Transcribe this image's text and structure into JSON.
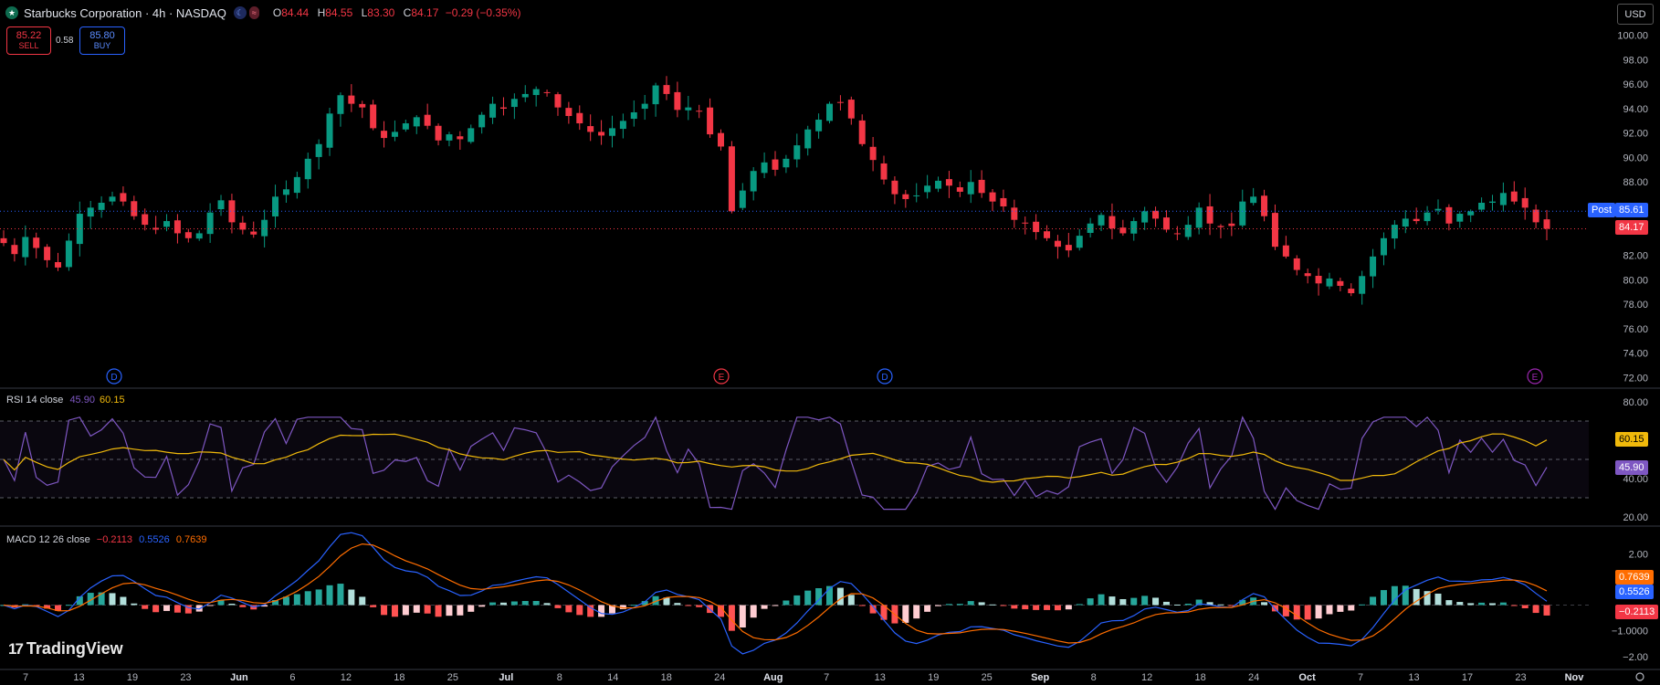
{
  "header": {
    "symbol_title": "Starbucks Corporation · 4h · NASDAQ",
    "ohlc": {
      "o_label": "O",
      "o": "84.44",
      "h_label": "H",
      "h": "84.55",
      "l_label": "L",
      "l": "83.30",
      "c_label": "C",
      "c": "84.17",
      "change": "−0.29 (−0.35%)"
    }
  },
  "trade": {
    "sell_price": "85.22",
    "sell_label": "SELL",
    "spread": "0.58",
    "buy_price": "85.80",
    "buy_label": "BUY"
  },
  "currency": "USD",
  "price_labels": {
    "post_tag": "Post",
    "post_value": "85.61",
    "last_value": "84.17",
    "rsi_ma": "60.15",
    "rsi": "45.90",
    "macd_signal": "0.7639",
    "macd_line": "0.5526",
    "macd_hist": "−0.2113"
  },
  "rsi_legend": {
    "name": "RSI 14 close",
    "rsi": "45.90",
    "ma": "60.15"
  },
  "macd_legend": {
    "name": "MACD 12 26 close",
    "hist": "−0.2113",
    "macd": "0.5526",
    "signal": "0.7639"
  },
  "watermark": "TradingView",
  "colors": {
    "up": "#089981",
    "down": "#f23645",
    "rsi": "#7e57c2",
    "rsi_ma": "#f0b90b",
    "macd": "#2962ff",
    "signal": "#ff6d00",
    "post": "#2962ff",
    "dividend": "#2962ff",
    "earnings": "#f23645"
  },
  "chart_data": {
    "type": "candlestick",
    "title": "Starbucks Corporation · 4h · NASDAQ",
    "price_axis": {
      "ticks": [
        "100.00",
        "98.00",
        "96.00",
        "94.00",
        "92.00",
        "90.00",
        "88.00",
        "86.00",
        "82.00",
        "80.00",
        "78.00",
        "76.00",
        "74.00",
        "72.00"
      ],
      "range": [
        71.5,
        100.8
      ]
    },
    "time_axis": [
      "7",
      "13",
      "19",
      "23",
      "Jun",
      "6",
      "12",
      "18",
      "25",
      "Jul",
      "8",
      "14",
      "18",
      "24",
      "Aug",
      "7",
      "13",
      "19",
      "25",
      "Sep",
      "8",
      "12",
      "18",
      "24",
      "Oct",
      "7",
      "13",
      "17",
      "23",
      "Nov"
    ],
    "last_price": 84.17,
    "post_price": 85.61,
    "close_series": [
      83.0,
      82.1,
      83.5,
      82.6,
      81.6,
      81.0,
      83.2,
      85.4,
      85.9,
      86.3,
      86.8,
      86.4,
      85.2,
      84.5,
      84.1,
      84.8,
      83.8,
      83.4,
      83.8,
      85.5,
      86.5,
      84.7,
      84.1,
      83.7,
      84.9,
      86.8,
      87.4,
      88.4,
      89.9,
      91.1,
      93.6,
      95.1,
      94.4,
      94.1,
      92.4,
      91.6,
      92.1,
      92.8,
      93.3,
      92.6,
      91.4,
      91.9,
      91.5,
      92.4,
      93.5,
      94.4,
      94.0,
      94.8,
      95.2,
      95.6,
      95.3,
      94.1,
      93.4,
      92.8,
      92.1,
      91.8,
      92.4,
      93.0,
      93.7,
      94.4,
      95.9,
      95.2,
      93.9,
      94.1,
      93.8,
      91.9,
      90.9,
      85.6,
      87.3,
      88.9,
      89.6,
      89.0,
      89.9,
      91.0,
      92.3,
      93.1,
      94.4,
      94.5,
      93.2,
      91.1,
      89.8,
      88.2,
      87.0,
      86.6,
      86.9,
      87.7,
      88.1,
      87.7,
      87.2,
      88.0,
      87.1,
      86.4,
      86.0,
      84.9,
      84.6,
      83.9,
      83.4,
      82.7,
      82.4,
      83.6,
      84.6,
      85.3,
      84.2,
      83.8,
      84.8,
      85.6,
      85.0,
      84.1,
      83.8,
      84.5,
      85.9,
      84.6,
      84.3,
      84.4,
      86.4,
      86.8,
      85.2,
      82.7,
      81.9,
      80.8,
      80.3,
      79.7,
      80.1,
      79.5,
      78.9,
      80.3,
      81.9,
      83.4,
      84.5,
      85.0,
      84.8,
      85.5,
      85.8,
      84.6,
      85.4,
      85.6,
      86.3,
      86.4,
      87.1,
      86.4,
      85.9,
      84.7,
      84.17
    ],
    "rsi": {
      "name": "RSI 14 close",
      "value": 45.9,
      "ma": 60.15,
      "axis_ticks": [
        "80.00",
        "40.00",
        "20.00"
      ],
      "bands": [
        70,
        50,
        30
      ]
    },
    "macd": {
      "name": "MACD 12 26 close",
      "histogram": -0.2113,
      "macd": 0.5526,
      "signal": 0.7639,
      "axis_ticks": [
        "2.00",
        "−1.0000",
        "−2.00"
      ]
    },
    "event_markers": [
      {
        "type": "dividend",
        "label": "D"
      },
      {
        "type": "earnings",
        "label": "E"
      },
      {
        "type": "dividend",
        "label": "D"
      },
      {
        "type": "earnings",
        "label": "E"
      }
    ]
  }
}
